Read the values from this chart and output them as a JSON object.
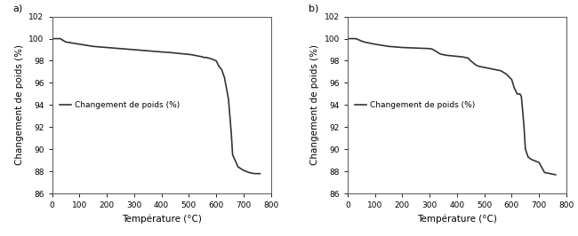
{
  "title_a": "a)",
  "title_b": "b)",
  "xlabel": "Température (°C)",
  "ylabel": "Changement de poids (%)",
  "legend_label": "Changement de poids (%)",
  "xlim": [
    0,
    800
  ],
  "ylim": [
    86,
    102
  ],
  "yticks": [
    86,
    88,
    90,
    92,
    94,
    96,
    98,
    100,
    102
  ],
  "xticks": [
    0,
    100,
    200,
    300,
    400,
    500,
    600,
    700,
    800
  ],
  "line_color": "#333333",
  "line_width": 1.2,
  "curve_a_x": [
    0,
    30,
    50,
    100,
    150,
    200,
    250,
    300,
    350,
    400,
    430,
    450,
    470,
    490,
    510,
    520,
    530,
    540,
    550,
    555,
    560,
    565,
    570,
    580,
    590,
    600,
    610,
    620,
    630,
    640,
    645,
    650,
    655,
    660,
    680,
    700,
    720,
    740,
    760
  ],
  "curve_a_y": [
    100.0,
    100.0,
    99.7,
    99.5,
    99.3,
    99.2,
    99.1,
    99.0,
    98.9,
    98.8,
    98.75,
    98.7,
    98.65,
    98.6,
    98.55,
    98.5,
    98.45,
    98.4,
    98.35,
    98.3,
    98.3,
    98.3,
    98.25,
    98.2,
    98.1,
    98.0,
    97.5,
    97.2,
    96.5,
    95.2,
    94.5,
    93.0,
    91.5,
    89.5,
    88.4,
    88.1,
    87.9,
    87.8,
    87.8
  ],
  "curve_b_x": [
    0,
    30,
    60,
    100,
    150,
    200,
    250,
    300,
    310,
    320,
    330,
    340,
    350,
    360,
    380,
    400,
    420,
    430,
    440,
    450,
    460,
    470,
    480,
    490,
    500,
    510,
    520,
    530,
    540,
    550,
    560,
    580,
    600,
    610,
    620,
    630,
    635,
    640,
    645,
    650,
    660,
    670,
    680,
    700,
    720,
    740,
    760
  ],
  "curve_b_y": [
    100.0,
    100.0,
    99.7,
    99.5,
    99.3,
    99.2,
    99.15,
    99.1,
    99.05,
    98.9,
    98.75,
    98.6,
    98.55,
    98.5,
    98.45,
    98.4,
    98.35,
    98.3,
    98.25,
    98.0,
    97.8,
    97.6,
    97.5,
    97.45,
    97.4,
    97.35,
    97.3,
    97.25,
    97.2,
    97.15,
    97.1,
    96.8,
    96.3,
    95.5,
    95.0,
    95.0,
    94.8,
    93.5,
    92.0,
    90.0,
    89.3,
    89.1,
    89.0,
    88.8,
    87.9,
    87.8,
    87.7
  ]
}
